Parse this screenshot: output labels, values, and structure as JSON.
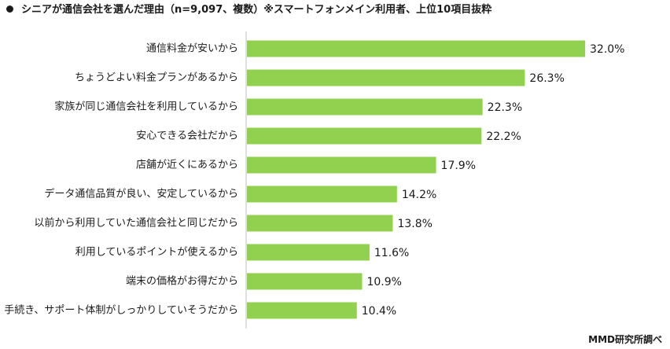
{
  "title": "シニアが通信会社を選んだ理由（n=9,097、複数）※スマートフォンメイン利用者、上位10項目抜粋",
  "credit": "MMD研究所調べ",
  "colors": {
    "bar": "#92d050",
    "axis": "#bfbfbf",
    "text": "#1a1a1a"
  },
  "chart_data": {
    "type": "bar",
    "orientation": "horizontal",
    "categories": [
      "通信料金が安いから",
      "ちょうどよい料金プランがあるから",
      "家族が同じ通信会社を利用しているから",
      "安心できる会社だから",
      "店舗が近くにあるから",
      "データ通信品質が良い、安定しているから",
      "以前から利用していた通信会社と同じだから",
      "利用しているポイントが使えるから",
      "端末の価格がお得だから",
      "手続き、サポート体制がしっかりしていそうだから"
    ],
    "values": [
      32.0,
      26.3,
      22.3,
      22.2,
      17.9,
      14.2,
      13.8,
      11.6,
      10.9,
      10.4
    ],
    "value_labels": [
      "32.0%",
      "26.3%",
      "22.3%",
      "22.2%",
      "17.9%",
      "14.2%",
      "13.8%",
      "11.6%",
      "10.9%",
      "10.4%"
    ],
    "unit": "%",
    "xlim": [
      0,
      32
    ],
    "grid": false,
    "legend": "none"
  }
}
